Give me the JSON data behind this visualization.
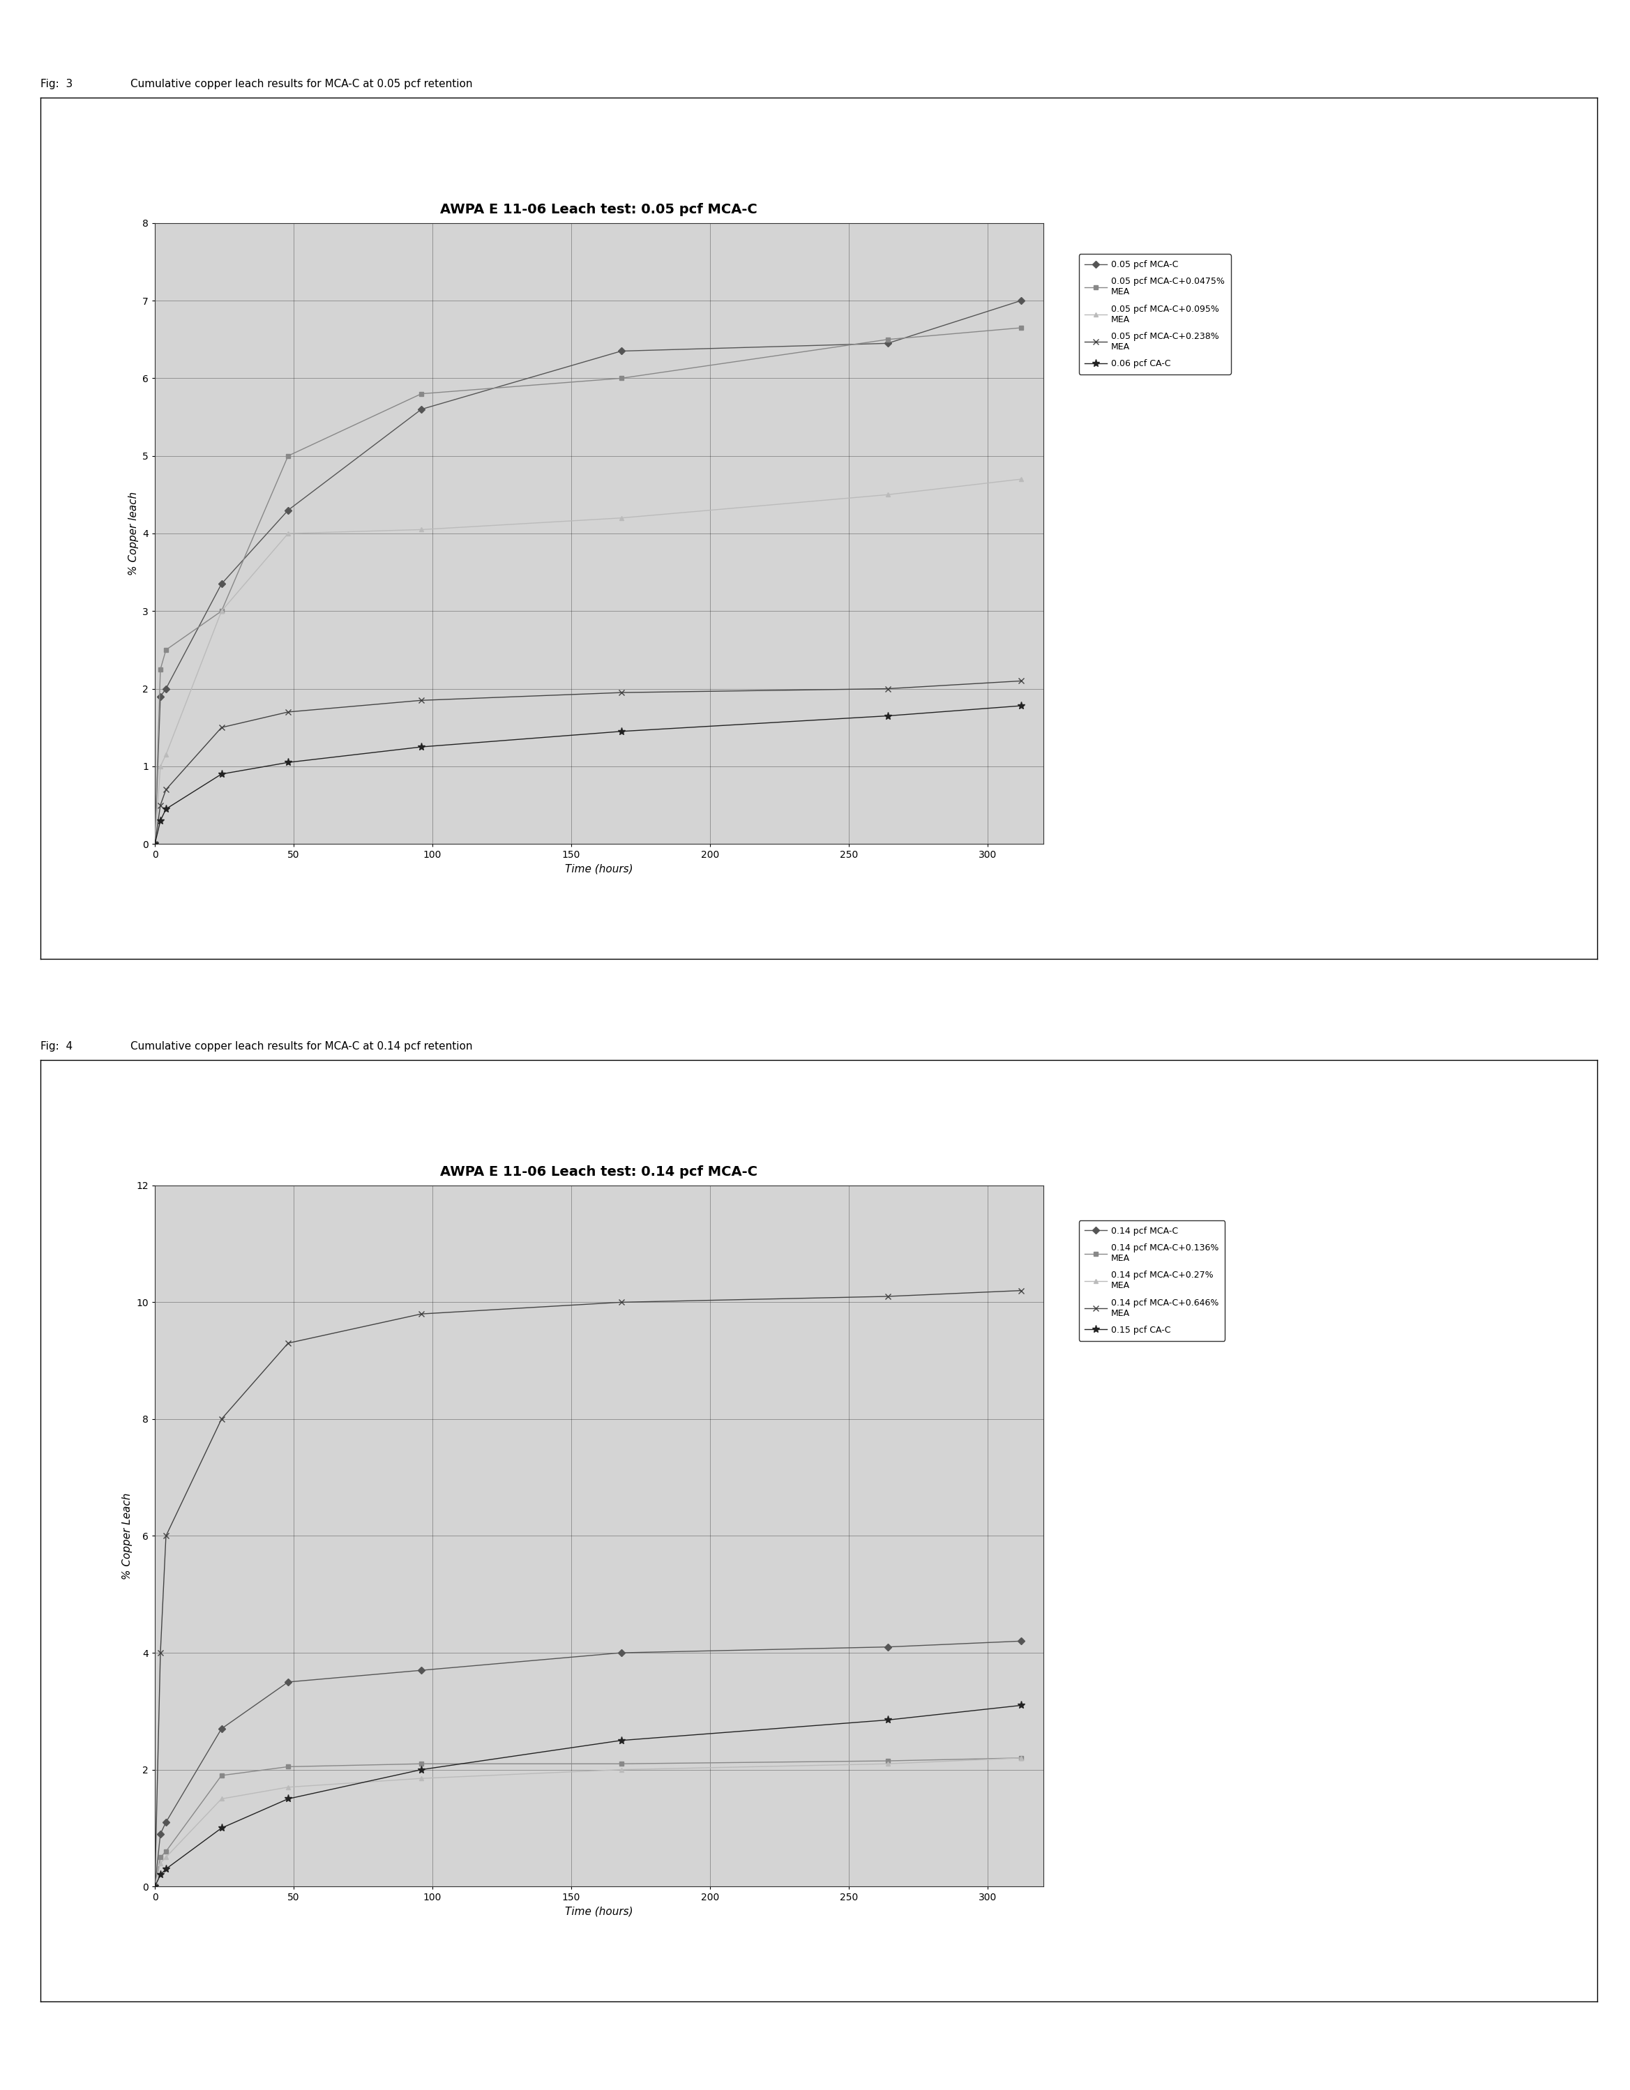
{
  "fig3": {
    "title": "AWPA E 11-06 Leach test: 0.05 pcf MCA-C",
    "xlabel": "Time (hours)",
    "ylabel": "% Copper leach",
    "fig_label": "Fig:  3",
    "fig_caption": "Cumulative copper leach results for MCA-C at 0.05 pcf retention",
    "ylim": [
      0,
      8
    ],
    "xlim": [
      0,
      320
    ],
    "yticks": [
      0,
      1,
      2,
      3,
      4,
      5,
      6,
      7,
      8
    ],
    "xticks": [
      0,
      50,
      100,
      150,
      200,
      250,
      300
    ],
    "series": [
      {
        "label": "0.05 pcf MCA-C",
        "color": "#555555",
        "marker": "D",
        "markersize": 5,
        "x": [
          0,
          2,
          4,
          24,
          48,
          96,
          168,
          264,
          312
        ],
        "y": [
          0,
          1.9,
          2.0,
          3.35,
          4.3,
          5.6,
          6.35,
          6.45,
          7.0
        ]
      },
      {
        "label": "0.05 pcf MCA-C+0.0475%\nMEA",
        "color": "#888888",
        "marker": "s",
        "markersize": 5,
        "x": [
          0,
          2,
          4,
          24,
          48,
          96,
          168,
          264,
          312
        ],
        "y": [
          0,
          2.25,
          2.5,
          3.0,
          5.0,
          5.8,
          6.0,
          6.5,
          6.65
        ]
      },
      {
        "label": "0.05 pcf MCA-C+0.095%\nMEA",
        "color": "#bbbbbb",
        "marker": "^",
        "markersize": 5,
        "x": [
          0,
          2,
          4,
          24,
          48,
          96,
          168,
          264,
          312
        ],
        "y": [
          0,
          1.0,
          1.15,
          3.0,
          4.0,
          4.05,
          4.2,
          4.5,
          4.7
        ]
      },
      {
        "label": "0.05 pcf MCA-C+0.238%\nMEA",
        "color": "#444444",
        "marker": "x",
        "markersize": 6,
        "x": [
          0,
          2,
          4,
          24,
          48,
          96,
          168,
          264,
          312
        ],
        "y": [
          0,
          0.5,
          0.7,
          1.5,
          1.7,
          1.85,
          1.95,
          2.0,
          2.1
        ]
      },
      {
        "label": "0.06 pcf CA-C",
        "color": "#222222",
        "marker": "*",
        "markersize": 8,
        "x": [
          0,
          2,
          4,
          24,
          48,
          96,
          168,
          264,
          312
        ],
        "y": [
          0,
          0.3,
          0.45,
          0.9,
          1.05,
          1.25,
          1.45,
          1.65,
          1.78
        ]
      }
    ]
  },
  "fig4": {
    "title": "AWPA E 11-06 Leach test: 0.14 pcf MCA-C",
    "xlabel": "Time (hours)",
    "ylabel": "% Copper Leach",
    "fig_label": "Fig:  4",
    "fig_caption": "Cumulative copper leach results for MCA-C at 0.14 pcf retention",
    "ylim": [
      0,
      12
    ],
    "xlim": [
      0,
      320
    ],
    "yticks": [
      0,
      2,
      4,
      6,
      8,
      10,
      12
    ],
    "xticks": [
      0,
      50,
      100,
      150,
      200,
      250,
      300
    ],
    "series": [
      {
        "label": "0.14 pcf MCA-C",
        "color": "#555555",
        "marker": "D",
        "markersize": 5,
        "x": [
          0,
          2,
          4,
          24,
          48,
          96,
          168,
          264,
          312
        ],
        "y": [
          0,
          0.9,
          1.1,
          2.7,
          3.5,
          3.7,
          4.0,
          4.1,
          4.2
        ]
      },
      {
        "label": "0.14 pcf MCA-C+0.136%\nMEA",
        "color": "#888888",
        "marker": "s",
        "markersize": 5,
        "x": [
          0,
          2,
          4,
          24,
          48,
          96,
          168,
          264,
          312
        ],
        "y": [
          0,
          0.5,
          0.6,
          1.9,
          2.05,
          2.1,
          2.1,
          2.15,
          2.2
        ]
      },
      {
        "label": "0.14 pcf MCA-C+0.27%\nMEA",
        "color": "#bbbbbb",
        "marker": "^",
        "markersize": 5,
        "x": [
          0,
          2,
          4,
          24,
          48,
          96,
          168,
          264,
          312
        ],
        "y": [
          0,
          0.4,
          0.5,
          1.5,
          1.7,
          1.85,
          2.0,
          2.1,
          2.2
        ]
      },
      {
        "label": "0.14 pcf MCA-C+0.646%\nMEA",
        "color": "#444444",
        "marker": "x",
        "markersize": 6,
        "x": [
          0,
          2,
          4,
          24,
          48,
          96,
          168,
          264,
          312
        ],
        "y": [
          0,
          4.0,
          6.0,
          8.0,
          9.3,
          9.8,
          10.0,
          10.1,
          10.2
        ]
      },
      {
        "label": "0.15 pcf CA-C",
        "color": "#222222",
        "marker": "*",
        "markersize": 8,
        "x": [
          0,
          2,
          4,
          24,
          48,
          96,
          168,
          264,
          312
        ],
        "y": [
          0,
          0.2,
          0.3,
          1.0,
          1.5,
          2.0,
          2.5,
          2.85,
          3.1
        ]
      }
    ]
  },
  "plot_bg": "#d4d4d4",
  "page_bg": "#ffffff",
  "border_color": "#000000",
  "grid_color": "#000000",
  "grid_alpha": 0.35,
  "grid_linewidth": 0.6,
  "title_fontsize": 14,
  "axis_label_fontsize": 11,
  "tick_fontsize": 10,
  "legend_fontsize": 9,
  "caption_fontsize": 11,
  "figlabel_fontsize": 11
}
